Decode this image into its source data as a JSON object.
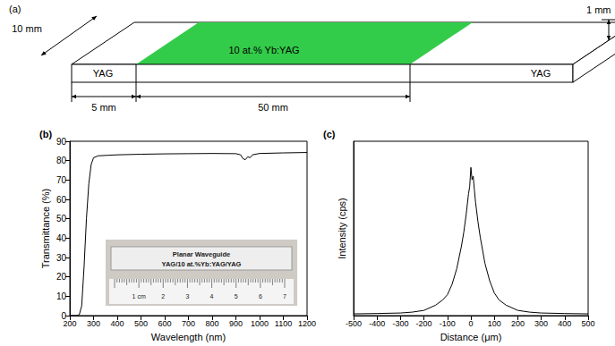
{
  "diagram": {
    "label": "(a)",
    "width_label": "10 mm",
    "thickness_label": "1 mm",
    "left_end": "YAG",
    "right_end": "YAG",
    "core": "10 at.% Yb:YAG",
    "core_color": "#33cc4a",
    "end_length_label": "5 mm",
    "core_length_label": "50 mm"
  },
  "chart_data": [
    {
      "label": "(b)",
      "type": "line",
      "x_label": "Wavelength (nm)",
      "y_label": "Transmittance (%)",
      "x": [
        200,
        230,
        240,
        250,
        260,
        270,
        280,
        290,
        300,
        320,
        400,
        500,
        600,
        700,
        800,
        900,
        920,
        930,
        940,
        950,
        960,
        970,
        1000,
        1100,
        1200
      ],
      "values": [
        0,
        0,
        0.5,
        5,
        25,
        50,
        68,
        78,
        81.5,
        82.5,
        83,
        83.3,
        83.5,
        83.6,
        83.7,
        83.6,
        83,
        81,
        80.5,
        82,
        81.5,
        83,
        83.7,
        84,
        84.2
      ],
      "color": "#000000",
      "xlim": [
        200,
        1200
      ],
      "xticks": [
        200,
        300,
        400,
        500,
        600,
        700,
        800,
        900,
        1000,
        1100,
        1200
      ],
      "ylim": [
        0,
        90
      ],
      "yticks": [
        0,
        10,
        20,
        30,
        40,
        50,
        60,
        70,
        80,
        90
      ],
      "grid": false,
      "inset": {
        "title": "Planar Waveguide",
        "subtitle": "YAG/10 at.%Yb:YAG/YAG",
        "ruler_labels": [
          "1 cm",
          "2",
          "3",
          "4",
          "5",
          "6",
          "7"
        ]
      }
    },
    {
      "label": "(c)",
      "type": "line",
      "x_label": "Distance (μm)",
      "y_label": "Intensity (cps)",
      "x": [
        -500,
        -400,
        -300,
        -250,
        -200,
        -150,
        -120,
        -100,
        -80,
        -60,
        -40,
        -30,
        -20,
        -10,
        -5,
        0,
        5,
        10,
        15,
        20,
        30,
        40,
        60,
        80,
        100,
        120,
        150,
        200,
        250,
        300,
        400,
        500
      ],
      "values": [
        1,
        1.2,
        1.5,
        2,
        3,
        6,
        9,
        12,
        18,
        27,
        40,
        48,
        58,
        70,
        74,
        85,
        78,
        80,
        72,
        65,
        54,
        45,
        30,
        20,
        13,
        9,
        6,
        3,
        2,
        1.5,
        1.2,
        1
      ],
      "color": "#000000",
      "xlim": [
        -500,
        500
      ],
      "xticks": [
        -500,
        -400,
        -300,
        -200,
        -100,
        0,
        100,
        200,
        300,
        400,
        500
      ],
      "ylim": [
        0,
        100
      ],
      "grid": false,
      "tick_labels": "x"
    }
  ]
}
